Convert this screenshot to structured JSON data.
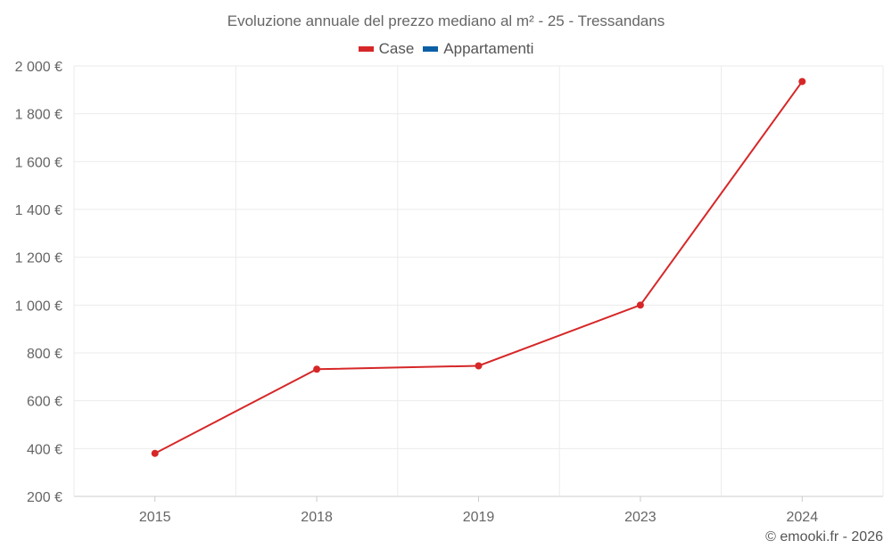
{
  "chart_data": {
    "type": "line",
    "title": "Evoluzione annuale del prezzo mediano al m² - 25 - Tressandans",
    "categories": [
      "2015",
      "2018",
      "2019",
      "2023",
      "2024"
    ],
    "series": [
      {
        "name": "Case",
        "color": "#d62728",
        "values": [
          380,
          732,
          746,
          1000,
          1935
        ]
      },
      {
        "name": "Appartamenti",
        "color": "#0b5fa5",
        "values": [
          null,
          null,
          null,
          null,
          null
        ]
      }
    ],
    "ylim": [
      200,
      2000
    ],
    "yticks": [
      "200 €",
      "400 €",
      "600 €",
      "800 €",
      "1 000 €",
      "1 200 €",
      "1 400 €",
      "1 600 €",
      "1 800 €",
      "2 000 €"
    ],
    "ytick_values": [
      200,
      400,
      600,
      800,
      1000,
      1200,
      1400,
      1600,
      1800,
      2000
    ],
    "grid": true,
    "legend": "top-center"
  },
  "credit": "© emooki.fr - 2026"
}
